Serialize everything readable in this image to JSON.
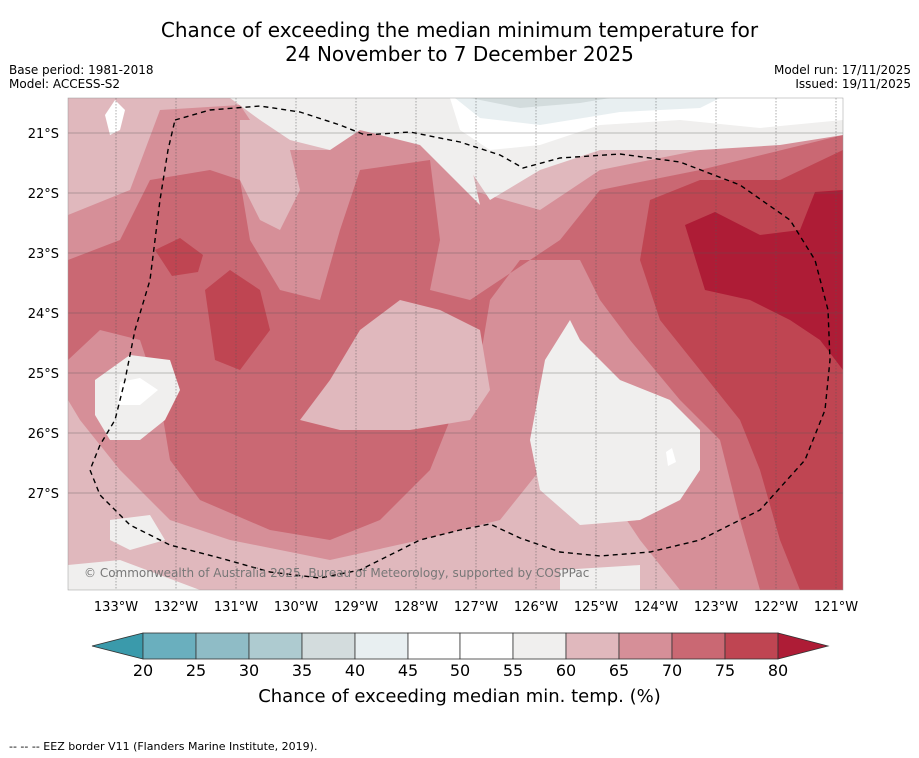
{
  "title": {
    "line1": "Chance of exceeding the median minimum temperature for",
    "line2": "24 November to 7 December 2025"
  },
  "meta": {
    "base_period": "Base period: 1981-2018",
    "model": "Model: ACCESS-S2",
    "model_run": "Model run: 17/11/2025",
    "issued": "Issued: 19/11/2025"
  },
  "map": {
    "lat_labels": [
      "21°S",
      "22°S",
      "23°S",
      "24°S",
      "25°S",
      "26°S",
      "27°S"
    ],
    "lon_labels": [
      "133°W",
      "132°W",
      "131°W",
      "130°W",
      "129°W",
      "128°W",
      "127°W",
      "126°W",
      "125°W",
      "124°W",
      "123°W",
      "122°W",
      "121°W"
    ],
    "copyright": "© Commonwealth of Australia 2025, Bureau of Meteorology, supported by COSPPac",
    "colors": {
      "c20": "#3a9aab",
      "c25": "#6aafbe",
      "c30": "#8fbcc6",
      "c35": "#aecbd0",
      "c40": "#d3dcdd",
      "c45": "#e8eff1",
      "c50": "#ffffff",
      "c55": "#f0efee",
      "c60": "#e0b8bd",
      "c65": "#d68f98",
      "c70": "#ca6873",
      "c75": "#bf4552",
      "c80": "#ae1c36"
    }
  },
  "colorbar": {
    "ticks": [
      "20",
      "25",
      "30",
      "35",
      "40",
      "45",
      "50",
      "55",
      "60",
      "65",
      "70",
      "75",
      "80"
    ],
    "label": "Chance of exceeding median min. temp. (%)"
  },
  "footnote": "--  --  -- EEZ border V11 (Flanders Marine Institute, 2019)."
}
